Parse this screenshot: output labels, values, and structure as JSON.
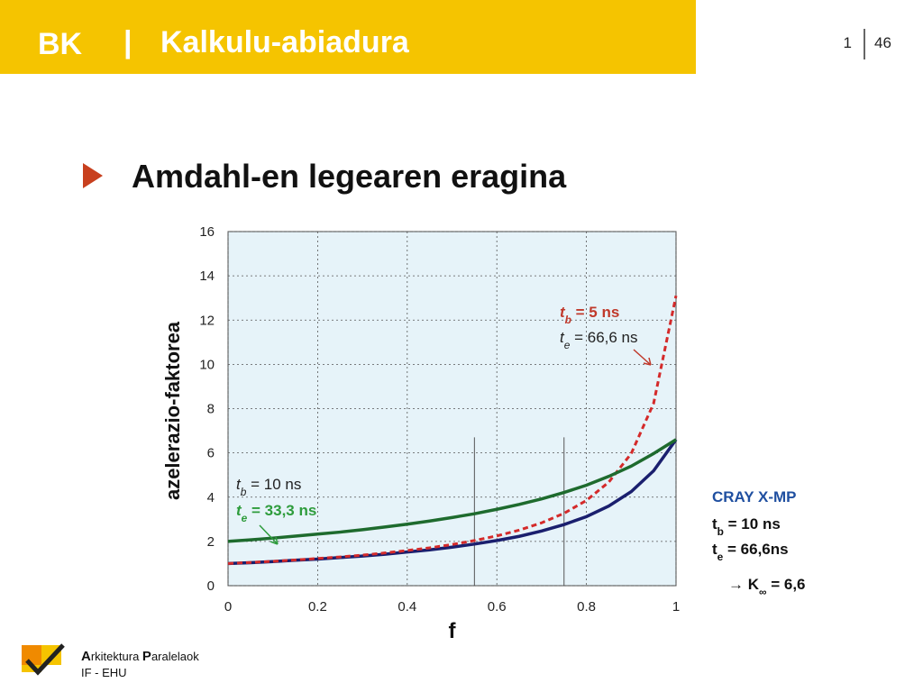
{
  "header": {
    "code": "BK",
    "separator": "|",
    "title": "Kalkulu-abiadura",
    "page": "1",
    "total": "46"
  },
  "heading": "Amdahl-en legearen eragina",
  "chart_data": {
    "type": "line",
    "x": [
      0,
      0.05,
      0.1,
      0.15,
      0.2,
      0.25,
      0.3,
      0.35,
      0.4,
      0.45,
      0.5,
      0.55,
      0.6,
      0.65,
      0.7,
      0.75,
      0.8,
      0.85,
      0.9,
      0.95,
      1
    ],
    "series": [
      {
        "color": "#1a1f6e",
        "dashed": false,
        "values": [
          1,
          1.04,
          1.09,
          1.15,
          1.2,
          1.27,
          1.34,
          1.42,
          1.52,
          1.62,
          1.74,
          1.88,
          2.04,
          2.23,
          2.47,
          2.76,
          3.12,
          3.6,
          4.25,
          5.19,
          6.6
        ]
      },
      {
        "color": "#d42a2a",
        "dashed": true,
        "values": [
          1,
          1.05,
          1.1,
          1.16,
          1.23,
          1.3,
          1.38,
          1.48,
          1.59,
          1.71,
          1.86,
          2.04,
          2.25,
          2.51,
          2.84,
          3.27,
          3.85,
          4.68,
          5.97,
          8.24,
          13.1
        ]
      },
      {
        "color": "#1e6b2e",
        "dashed": false,
        "values": [
          2,
          2.07,
          2.15,
          2.24,
          2.33,
          2.42,
          2.53,
          2.65,
          2.78,
          2.92,
          3.08,
          3.25,
          3.45,
          3.67,
          3.92,
          4.21,
          4.54,
          4.94,
          5.4,
          5.97,
          6.6
        ]
      }
    ],
    "xlim": [
      0,
      1
    ],
    "ylim": [
      0,
      16
    ],
    "xticks": [
      0,
      0.2,
      0.4,
      0.6,
      0.8,
      1
    ],
    "yticks": [
      0,
      2,
      4,
      6,
      8,
      10,
      12,
      14,
      16
    ],
    "grid": true,
    "xlabel": "f",
    "ylabel": "azelerazio-faktorea",
    "vlines": [
      {
        "x": 0.55,
        "top": 6.7
      },
      {
        "x": 0.75,
        "top": 6.7
      }
    ],
    "annotations": [
      {
        "color": "#c0392b",
        "parts": [
          {
            "text": "t",
            "bold": true,
            "italic": true
          },
          {
            "text": "b",
            "sub": true,
            "bold": true,
            "italic": true
          },
          {
            "text": " = 5 ns",
            "bold": true
          }
        ]
      },
      {
        "color": "#222222",
        "parts": [
          {
            "text": "t",
            "italic": true
          },
          {
            "text": "e",
            "sub": true,
            "italic": true
          },
          {
            "text": " = 66,6 ns"
          }
        ]
      },
      {
        "color": "#222222",
        "parts": [
          {
            "text": "t",
            "italic": true
          },
          {
            "text": "b",
            "sub": true,
            "italic": true
          },
          {
            "text": " = 10 ns"
          }
        ]
      },
      {
        "color": "#2e9c3c",
        "parts": [
          {
            "text": "t",
            "bold": true,
            "italic": true
          },
          {
            "text": "e",
            "sub": true,
            "bold": true,
            "italic": true
          },
          {
            "text": " = 33,3 ns",
            "bold": true
          }
        ]
      }
    ]
  },
  "side_note": [
    {
      "color": "#1f4fa0",
      "parts": [
        {
          "text": "CRAY X-MP"
        }
      ]
    },
    {
      "color": "#111111",
      "parts": [
        {
          "text": "t"
        },
        {
          "text": "b",
          "sub": true
        },
        {
          "text": " = 10 ns"
        }
      ]
    },
    {
      "color": "#111111",
      "parts": [
        {
          "text": "t"
        },
        {
          "text": "e",
          "sub": true
        },
        {
          "text": " = 66,6ns"
        }
      ]
    },
    {
      "color": "#111111",
      "parts": [
        {
          "text": "→ K"
        },
        {
          "text": "∞",
          "sub": true
        },
        {
          "text": " = 6,6"
        }
      ]
    }
  ],
  "footer": {
    "line1": [
      {
        "text": "A",
        "bold": true
      },
      {
        "text": "rkitektura "
      },
      {
        "text": "P",
        "bold": true
      },
      {
        "text": "aralelaok"
      }
    ],
    "line2": "IF - EHU"
  }
}
